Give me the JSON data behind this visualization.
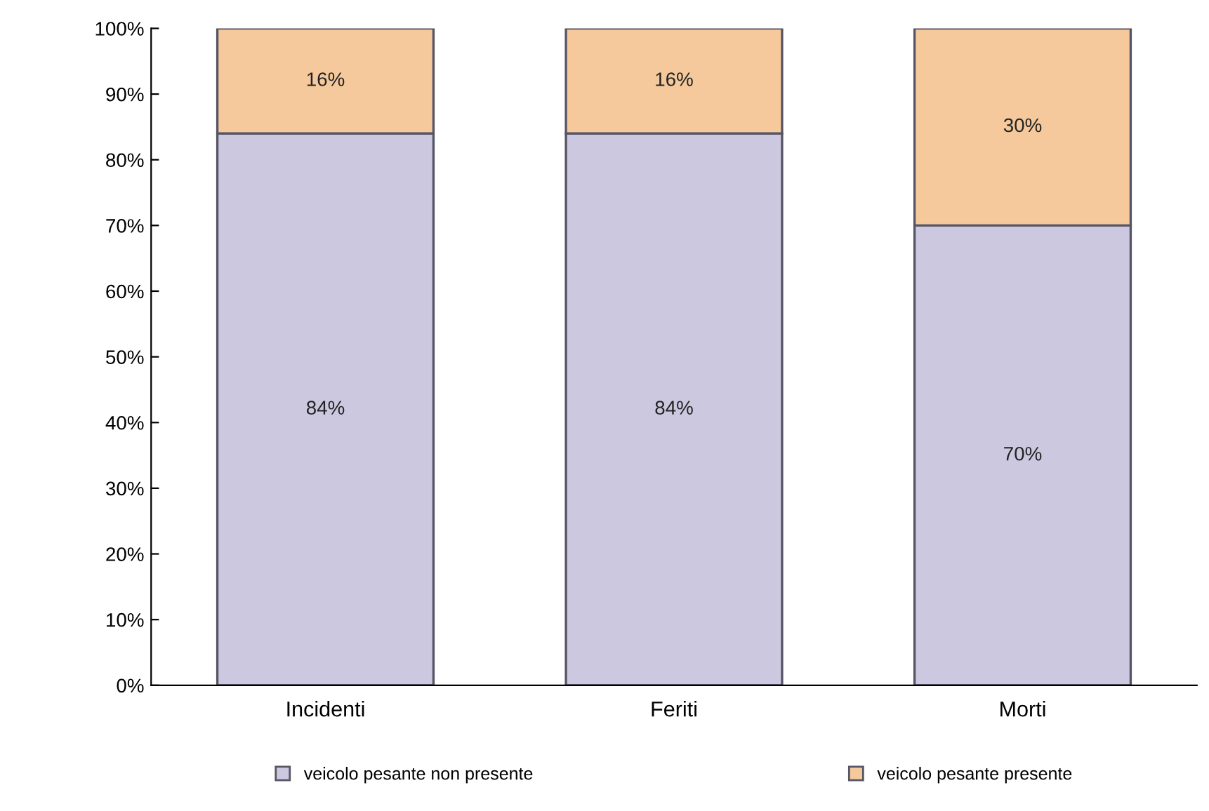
{
  "chart_data": {
    "type": "bar",
    "stacked": true,
    "categories": [
      "Incidenti",
      "Feriti",
      "Morti"
    ],
    "series": [
      {
        "name": "veicolo pesante non presente",
        "color": "#ccc8e0",
        "values": [
          84,
          84,
          70
        ],
        "value_labels": [
          "84%",
          "84%",
          "70%"
        ]
      },
      {
        "name": "veicolo pesante presente",
        "color": "#f5c99c",
        "values": [
          16,
          16,
          30
        ],
        "value_labels": [
          "16%",
          "16%",
          "30%"
        ]
      }
    ],
    "ylim": [
      0,
      100
    ],
    "yticks": [
      {
        "value": 0,
        "label": "0%"
      },
      {
        "value": 10,
        "label": "10%"
      },
      {
        "value": 20,
        "label": "20%"
      },
      {
        "value": 30,
        "label": "30%"
      },
      {
        "value": 40,
        "label": "40%"
      },
      {
        "value": 50,
        "label": "50%"
      },
      {
        "value": 60,
        "label": "60%"
      },
      {
        "value": 70,
        "label": "70%"
      },
      {
        "value": 80,
        "label": "80%"
      },
      {
        "value": 90,
        "label": "90%"
      },
      {
        "value": 100,
        "label": "100%"
      }
    ],
    "legend": "bottom",
    "grid": false
  }
}
